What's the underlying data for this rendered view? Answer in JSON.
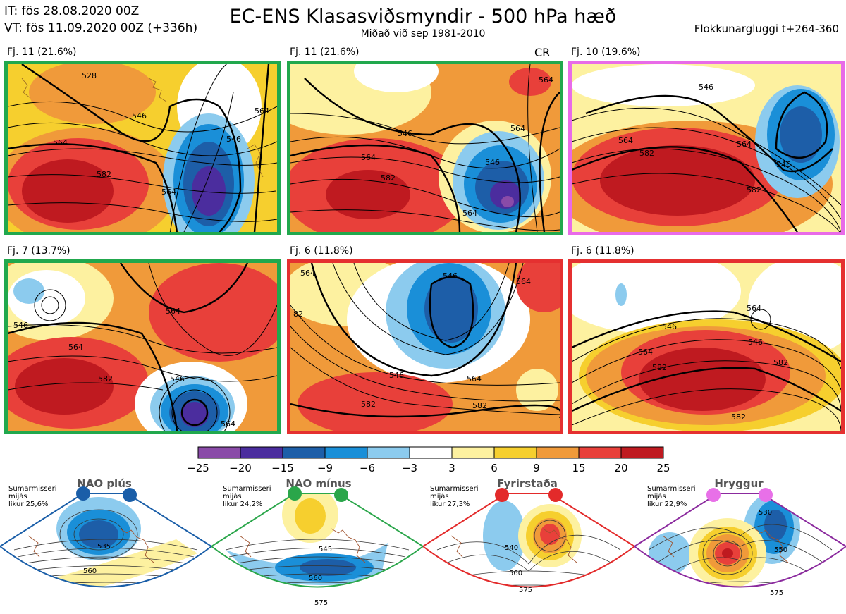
{
  "header": {
    "it": "IT: fös 28.08.2020 00Z",
    "vt": "VT: fös 11.09.2020 00Z  (+336h)",
    "title": "EC-ENS Klasasviðsmyndir - 500 hPa hæð",
    "subtitle": "Miðað við sep 1981-2010",
    "window": "Flokkunargluggi t+264-360"
  },
  "colors": {
    "nao_plus": "#1a5ea8",
    "nao_minus": "#2aa64a",
    "blocking": "#e32a2a",
    "ridge": "#e870e8"
  },
  "panels": [
    {
      "label": "Fj. 11 (21.6%)",
      "border": "#21a84d",
      "extra": "",
      "contours": [
        "528",
        "546",
        "564",
        "582",
        "546",
        "564",
        "564"
      ]
    },
    {
      "label": "Fj. 11 (21.6%)",
      "border": "#21a84d",
      "extra": "CR",
      "contours": [
        "546",
        "564",
        "582",
        "546",
        "564",
        "564",
        "564"
      ]
    },
    {
      "label": "Fj. 10 (19.6%)",
      "border": "#e86be8",
      "extra": "",
      "contours": [
        "546",
        "564",
        "582",
        "546",
        "564",
        "582"
      ]
    },
    {
      "label": "Fj. 7 (13.7%)",
      "border": "#21a84d",
      "extra": "",
      "contours": [
        "546",
        "564",
        "582",
        "564",
        "546",
        "564"
      ]
    },
    {
      "label": "Fj. 6 (11.8%)",
      "border": "#e53030",
      "extra": "",
      "contours": [
        "564",
        "82",
        "546",
        "564",
        "546",
        "564",
        "582",
        "582"
      ]
    },
    {
      "label": "Fj. 6 (11.8%)",
      "border": "#e53030",
      "extra": "",
      "contours": [
        "546",
        "564",
        "546",
        "582",
        "564",
        "582",
        "582"
      ]
    }
  ],
  "colorbar": {
    "ticks": [
      "−25",
      "−20",
      "−15",
      "−9",
      "−6",
      "−3",
      "3",
      "6",
      "9",
      "15",
      "20",
      "25"
    ],
    "colors": [
      "#8a4ba8",
      "#4b2d9e",
      "#1d5ea8",
      "#1a8fd8",
      "#8ccbee",
      "#ffffff",
      "#fdf1a0",
      "#f6cf2e",
      "#f09a3a",
      "#e8403a",
      "#bf1a20"
    ]
  },
  "regimes": [
    {
      "name": "NAO plús",
      "note": [
        "Sumarmisseri",
        "mijás",
        "líkur 25,6%"
      ],
      "contours": [
        "535",
        "560"
      ],
      "color": "#1a5ea8"
    },
    {
      "name": "NAO mínus",
      "note": [
        "Sumarmisseri",
        "mijás",
        "líkur 24,2%"
      ],
      "contours": [
        "545",
        "560",
        "575"
      ],
      "color": "#2aa64a"
    },
    {
      "name": "Fyrirstaða",
      "note": [
        "Sumarmisseri",
        "mijás",
        "líkur 27,3%"
      ],
      "contours": [
        "540",
        "560",
        "575"
      ],
      "color": "#e32a2a"
    },
    {
      "name": "Hryggur",
      "note": [
        "Sumarmisseri",
        "mijás",
        "líkur 22,9%"
      ],
      "contours": [
        "530",
        "550",
        "575"
      ],
      "color": "#8b2a9e"
    }
  ]
}
